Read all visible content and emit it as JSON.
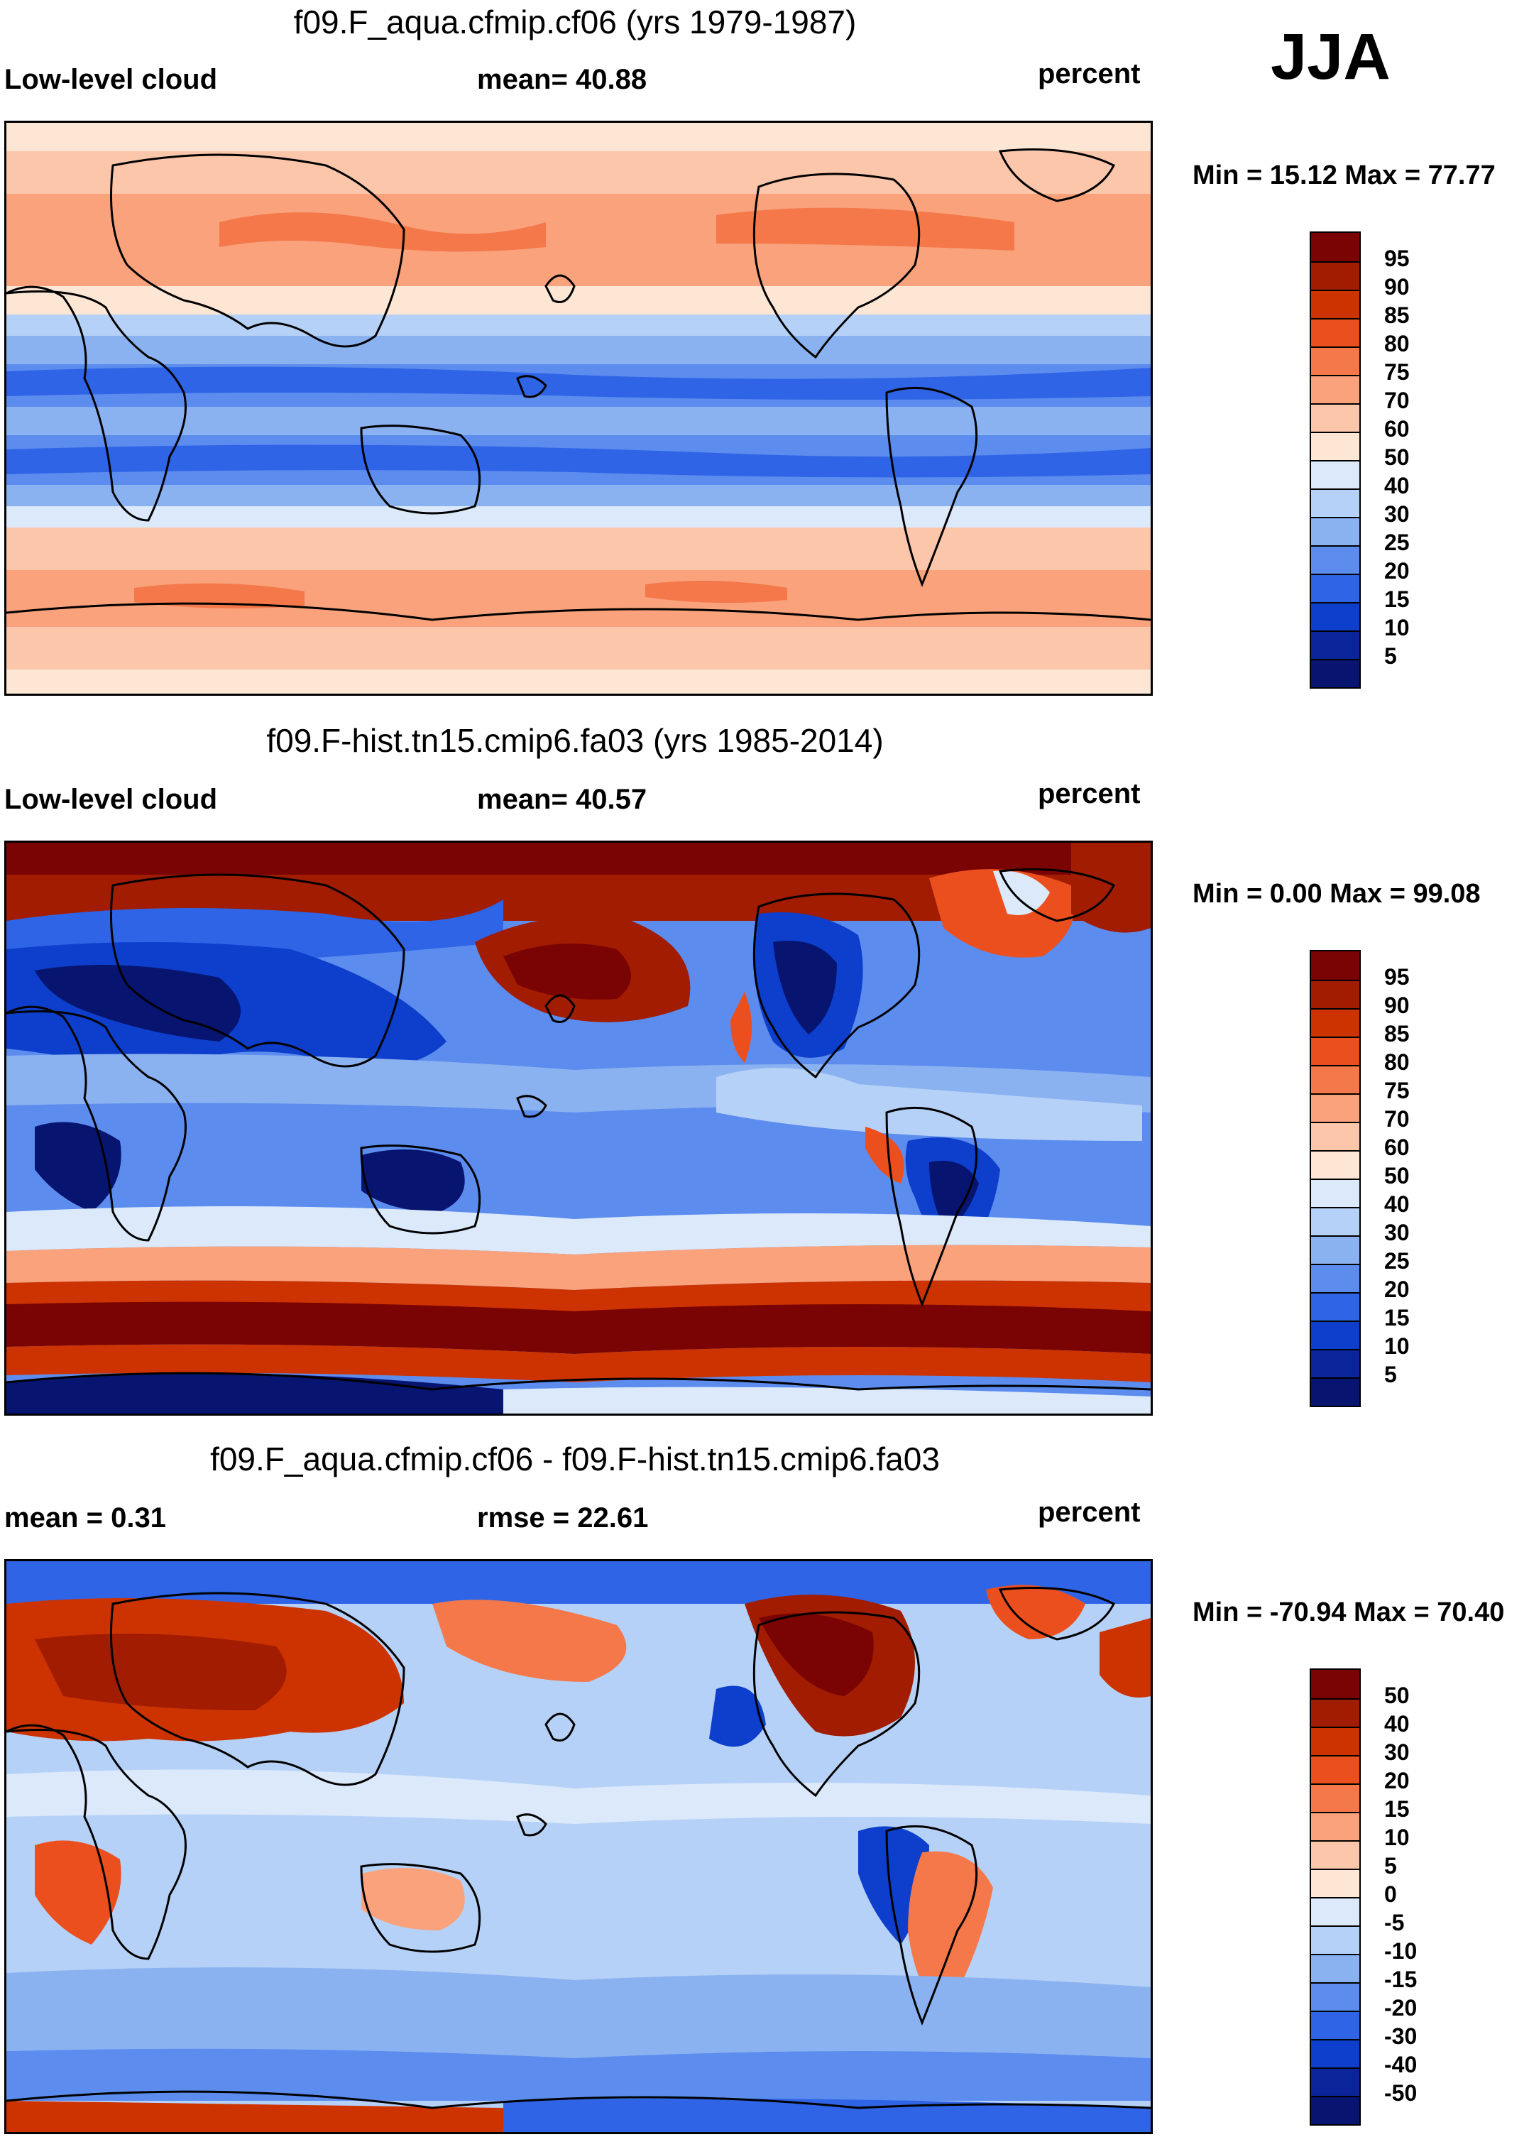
{
  "season": "JJA",
  "units": "percent",
  "panels": [
    {
      "id": "panel1",
      "title": "f09.F_aqua.cfmip.cf06 (yrs 1979-1987)",
      "left_label": "Low-level cloud",
      "mid_label": "mean=  40.88",
      "right_label": "percent",
      "minmax": "Min =  15.12 Max =  77.77",
      "levels": [
        "95",
        "90",
        "85",
        "80",
        "75",
        "70",
        "60",
        "50",
        "40",
        "30",
        "25",
        "20",
        "15",
        "10",
        "5"
      ],
      "colors": [
        "#7a0403",
        "#a11c00",
        "#cc3300",
        "#ec4f1e",
        "#f4784a",
        "#f9a27c",
        "#fcc6aa",
        "#fde6d4",
        "#dbe9fb",
        "#b6d1f7",
        "#8bb2f0",
        "#5c8cee",
        "#2f64e6",
        "#0d3fcc",
        "#0a2499",
        "#071470"
      ]
    },
    {
      "id": "panel2",
      "title": "f09.F-hist.tn15.cmip6.fa03 (yrs 1985-2014)",
      "left_label": "Low-level cloud",
      "mid_label": "mean=  40.57",
      "right_label": "percent",
      "minmax": "Min =   0.00 Max =  99.08",
      "levels": [
        "95",
        "90",
        "85",
        "80",
        "75",
        "70",
        "60",
        "50",
        "40",
        "30",
        "25",
        "20",
        "15",
        "10",
        "5"
      ],
      "colors": [
        "#7a0403",
        "#a11c00",
        "#cc3300",
        "#ec4f1e",
        "#f4784a",
        "#f9a27c",
        "#fcc6aa",
        "#fde6d4",
        "#dbe9fb",
        "#b6d1f7",
        "#8bb2f0",
        "#5c8cee",
        "#2f64e6",
        "#0d3fcc",
        "#0a2499",
        "#071470"
      ]
    },
    {
      "id": "panel3",
      "title": "f09.F_aqua.cfmip.cf06 - f09.F-hist.tn15.cmip6.fa03",
      "left_label": "mean =   0.31",
      "mid_label": "rmse =  22.61",
      "right_label": "percent",
      "minmax": "Min = -70.94 Max =  70.40",
      "levels": [
        "50",
        "40",
        "30",
        "20",
        "15",
        "10",
        "5",
        "0",
        "-5",
        "-10",
        "-15",
        "-20",
        "-30",
        "-40",
        "-50"
      ],
      "colors": [
        "#7a0403",
        "#a11c00",
        "#cc3300",
        "#ec4f1e",
        "#f4784a",
        "#f9a27c",
        "#fcc6aa",
        "#fde6d4",
        "#dbe9fb",
        "#b6d1f7",
        "#8bb2f0",
        "#5c8cee",
        "#2f64e6",
        "#0d3fcc",
        "#0a2499",
        "#071470"
      ]
    }
  ]
}
